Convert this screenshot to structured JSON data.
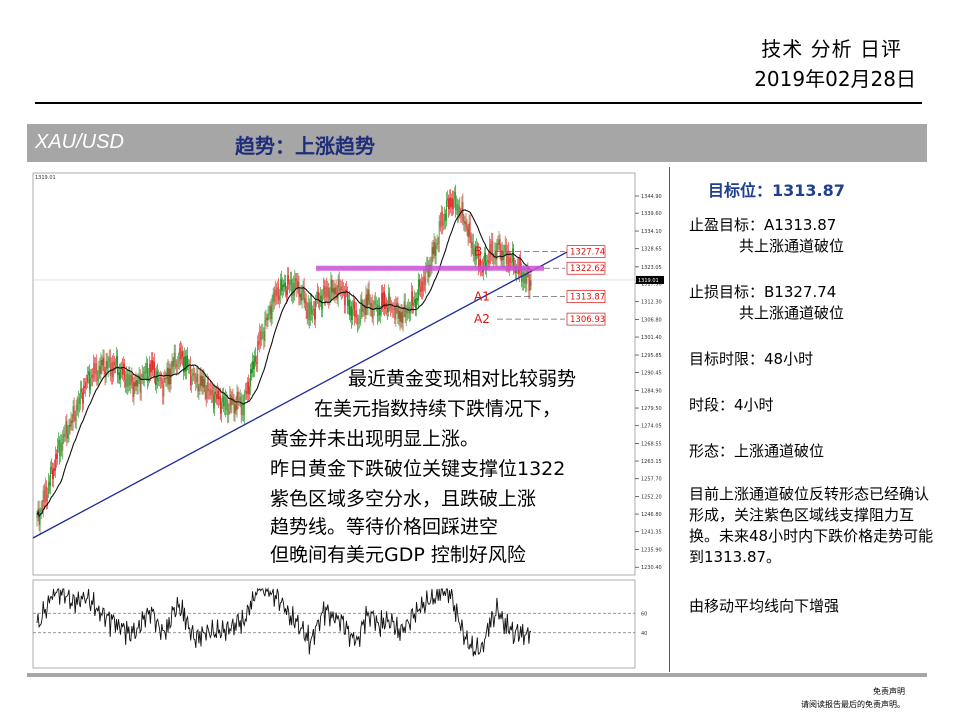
{
  "header": {
    "title": "技术 分析 日评",
    "date": "2019年02月28日"
  },
  "banner": {
    "pair": "XAU/USD",
    "trend": "趋势：上涨趋势"
  },
  "chart_data": {
    "type": "candlestick",
    "instrument": "XAU/USD",
    "corner_label": "1319.01",
    "price_range": [
      1228,
      1352
    ],
    "y_ticks": [
      1344.9,
      1339.6,
      1334.1,
      1328.65,
      1323.05,
      1317.9,
      1312.3,
      1306.8,
      1301.4,
      1295.85,
      1290.45,
      1284.9,
      1279.5,
      1274.05,
      1268.55,
      1263.15,
      1257.7,
      1252.2,
      1246.8,
      1241.35,
      1235.9,
      1230.4
    ],
    "current_price": "1319.01",
    "support_zone": 1322.62,
    "levels": [
      {
        "label": "B",
        "value": 1327.74
      },
      {
        "label": "",
        "value": 1322.62
      },
      {
        "label": "A1",
        "value": 1313.87
      },
      {
        "label": "A2",
        "value": 1306.93
      }
    ],
    "level_value_labels": [
      "1327.74",
      "1322.62",
      "1313.87",
      "1306.93"
    ],
    "close_path": [
      1245,
      1252,
      1262,
      1270,
      1274,
      1281,
      1288,
      1290,
      1292,
      1293,
      1292,
      1288,
      1286,
      1290,
      1292,
      1286,
      1290,
      1296,
      1294,
      1288,
      1287,
      1284,
      1282,
      1280,
      1282,
      1281,
      1290,
      1300,
      1308,
      1315,
      1317,
      1318,
      1316,
      1308,
      1312,
      1315,
      1316,
      1316,
      1310,
      1308,
      1313,
      1309,
      1312,
      1311,
      1308,
      1310,
      1314,
      1320,
      1326,
      1336,
      1344,
      1342,
      1336,
      1328,
      1323,
      1327,
      1328,
      1326,
      1324,
      1320,
      1318
    ],
    "oscillator_levels": [
      60,
      40
    ]
  },
  "annotation": [
    "最近黄金变现相对比较弱势",
    "在美元指数持续下跌情况下，",
    "黄金并未出现明显上涨。",
    "昨日黄金下跌破位关键支撑位1322",
    "紫色区域多空分水，且跌破上涨",
    "趋势线。等待价格回踩进空",
    " 但晚间有美元GDP 控制好风险"
  ],
  "panel": {
    "target_label": "目标位：1313.87",
    "tp_label": "止盈目标：A1313.87",
    "tp_note": "共上涨通道破位",
    "sl_label": "止损目标：B1327.74",
    "sl_note": "共上涨通道破位",
    "time_limit": "目标时限：48小时",
    "timeframe": "时段：4小时",
    "pattern": "形态：上涨通道破位",
    "summary": "目前上涨通道破位反转形态已经确认形成，关注紫色区域线支撑阻力互换。未来48小时内下跌价格走势可能到1313.87。",
    "ma_note": "由移动平均线向下增强"
  },
  "disclaimer": {
    "title": "免责声明",
    "text": "请阅读报告最后的免责声明。"
  }
}
